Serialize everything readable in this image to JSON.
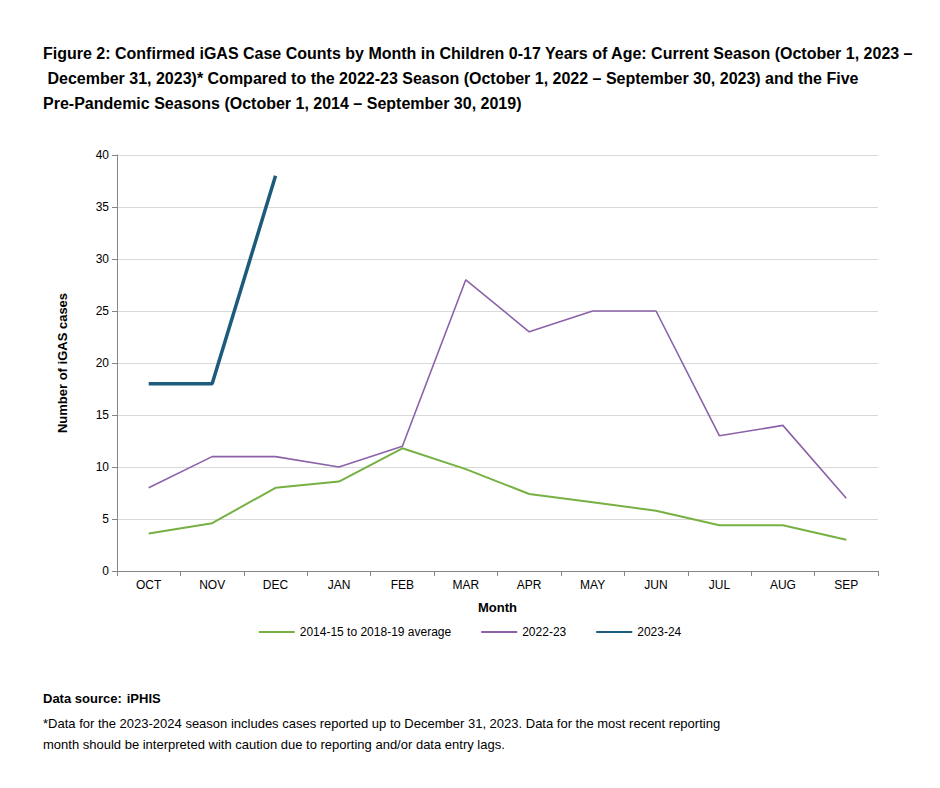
{
  "chart_data": {
    "type": "line",
    "title": "Figure 2: Confirmed iGAS Case Counts by Month in Children 0-17 Years of Age: Current Season (October 1, 2023 – December 31, 2023)* Compared to the 2022-23 Season (October 1, 2022 – September 30, 2023) and the Five Pre-Pandemic Seasons (October 1, 2014 – September 30, 2019)",
    "x_label": "Month",
    "y_label": "Number of iGAS cases",
    "categories": [
      "OCT",
      "NOV",
      "DEC",
      "JAN",
      "FEB",
      "MAR",
      "APR",
      "MAY",
      "JUN",
      "JUL",
      "AUG",
      "SEP"
    ],
    "series": [
      {
        "name": "2014-15 to 2018-19 average",
        "color": "#77b043",
        "values": [
          3.6,
          4.6,
          8.0,
          8.6,
          11.8,
          9.8,
          7.4,
          6.6,
          5.8,
          4.4,
          4.4,
          3.0
        ]
      },
      {
        "name": "2022-23",
        "color": "#8b62a8",
        "values": [
          8,
          11,
          11,
          10,
          12,
          28,
          23,
          25,
          25,
          13,
          14,
          7
        ]
      },
      {
        "name": "2023-24",
        "color": "#1d5b7c",
        "values": [
          18,
          18,
          38,
          null,
          null,
          null,
          null,
          null,
          null,
          null,
          null,
          null
        ]
      }
    ],
    "ylim": [
      0,
      40
    ],
    "yticks": [
      0,
      5,
      10,
      15,
      20,
      25,
      30,
      35,
      40
    ],
    "grid": true,
    "legend": "bottom",
    "source_label": "Data source:",
    "source": "iPHIS",
    "note": "*Data for the 2023-2024 season includes cases reported up to December 31, 2023. Data for the most recent reporting month should be interpreted with caution due to reporting and/or data entry lags."
  }
}
